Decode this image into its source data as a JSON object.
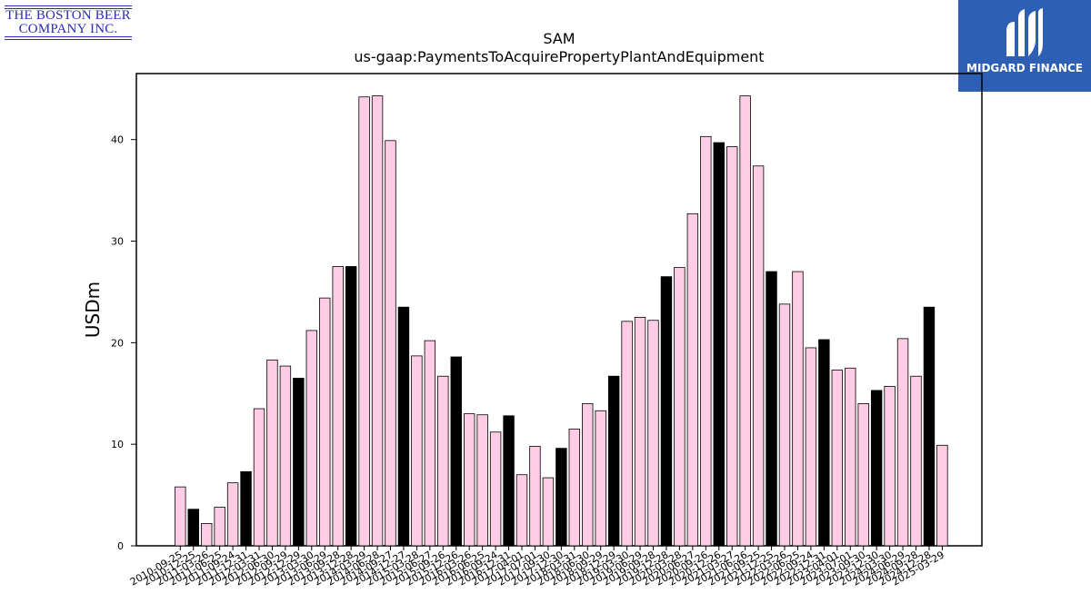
{
  "logos": {
    "left": {
      "line1": "THE BOSTON BEER",
      "line2": "COMPANY INC."
    },
    "right": {
      "name": "MIDGARD FINANCE"
    }
  },
  "colors": {
    "pink": "#ffcce6",
    "black": "#000000",
    "brand_blue": "#2d5fb4",
    "logo_text": "#2b2bb8"
  },
  "chart_data": {
    "type": "bar",
    "title": "SAM",
    "subtitle": "us-gaap:PaymentsToAcquirePropertyPlantAndEquipment",
    "xlabel": "",
    "ylabel": "USDm",
    "ylim": [
      0,
      46.5
    ],
    "yticks": [
      0,
      10,
      20,
      30,
      40
    ],
    "grid": false,
    "categories": [
      "2010-09-25",
      "2010-12-25",
      "2011-03-26",
      "2011-06-25",
      "2011-09-24",
      "2011-12-31",
      "2012-03-31",
      "2012-06-30",
      "2012-09-29",
      "2012-12-29",
      "2013-03-30",
      "2013-06-29",
      "2013-09-28",
      "2013-12-28",
      "2014-03-29",
      "2014-06-28",
      "2014-09-27",
      "2014-12-27",
      "2015-03-28",
      "2015-06-27",
      "2015-09-26",
      "2015-12-26",
      "2016-03-26",
      "2016-06-25",
      "2016-09-24",
      "2016-12-31",
      "2017-04-01",
      "2017-07-01",
      "2017-09-30",
      "2017-12-30",
      "2018-03-31",
      "2018-06-30",
      "2018-09-29",
      "2018-12-29",
      "2019-03-30",
      "2019-06-29",
      "2019-09-28",
      "2019-12-28",
      "2020-03-28",
      "2020-06-27",
      "2020-09-26",
      "2020-12-26",
      "2021-03-27",
      "2021-06-26",
      "2021-09-25",
      "2021-12-25",
      "2022-03-26",
      "2022-06-25",
      "2022-09-24",
      "2022-12-31",
      "2023-04-01",
      "2023-07-01",
      "2023-09-30",
      "2023-12-30",
      "2024-03-30",
      "2024-06-29",
      "2024-09-28",
      "2024-12-28",
      "2025-03-29"
    ],
    "values": [
      5.8,
      3.6,
      2.2,
      3.8,
      6.2,
      7.3,
      13.5,
      18.3,
      17.7,
      16.5,
      21.2,
      24.4,
      27.5,
      27.5,
      44.2,
      44.3,
      39.9,
      23.5,
      18.7,
      20.2,
      16.7,
      18.6,
      13.0,
      12.9,
      11.2,
      12.8,
      7.0,
      9.8,
      6.7,
      9.6,
      11.5,
      14.0,
      13.3,
      16.7,
      22.1,
      22.5,
      22.2,
      26.5,
      27.4,
      32.7,
      40.3,
      39.7,
      39.3,
      44.3,
      37.4,
      27.0,
      23.8,
      27.0,
      19.5,
      20.3,
      17.3,
      17.5,
      14.0,
      15.3,
      15.7,
      20.4,
      16.7,
      23.5,
      9.9
    ],
    "highlight": [
      false,
      true,
      false,
      false,
      false,
      true,
      false,
      false,
      false,
      true,
      false,
      false,
      false,
      true,
      false,
      false,
      false,
      true,
      false,
      false,
      false,
      true,
      false,
      false,
      false,
      true,
      false,
      false,
      false,
      true,
      false,
      false,
      false,
      true,
      false,
      false,
      false,
      true,
      false,
      false,
      false,
      true,
      false,
      false,
      false,
      true,
      false,
      false,
      false,
      true,
      false,
      false,
      false,
      true,
      false,
      false,
      false,
      true,
      false
    ]
  }
}
